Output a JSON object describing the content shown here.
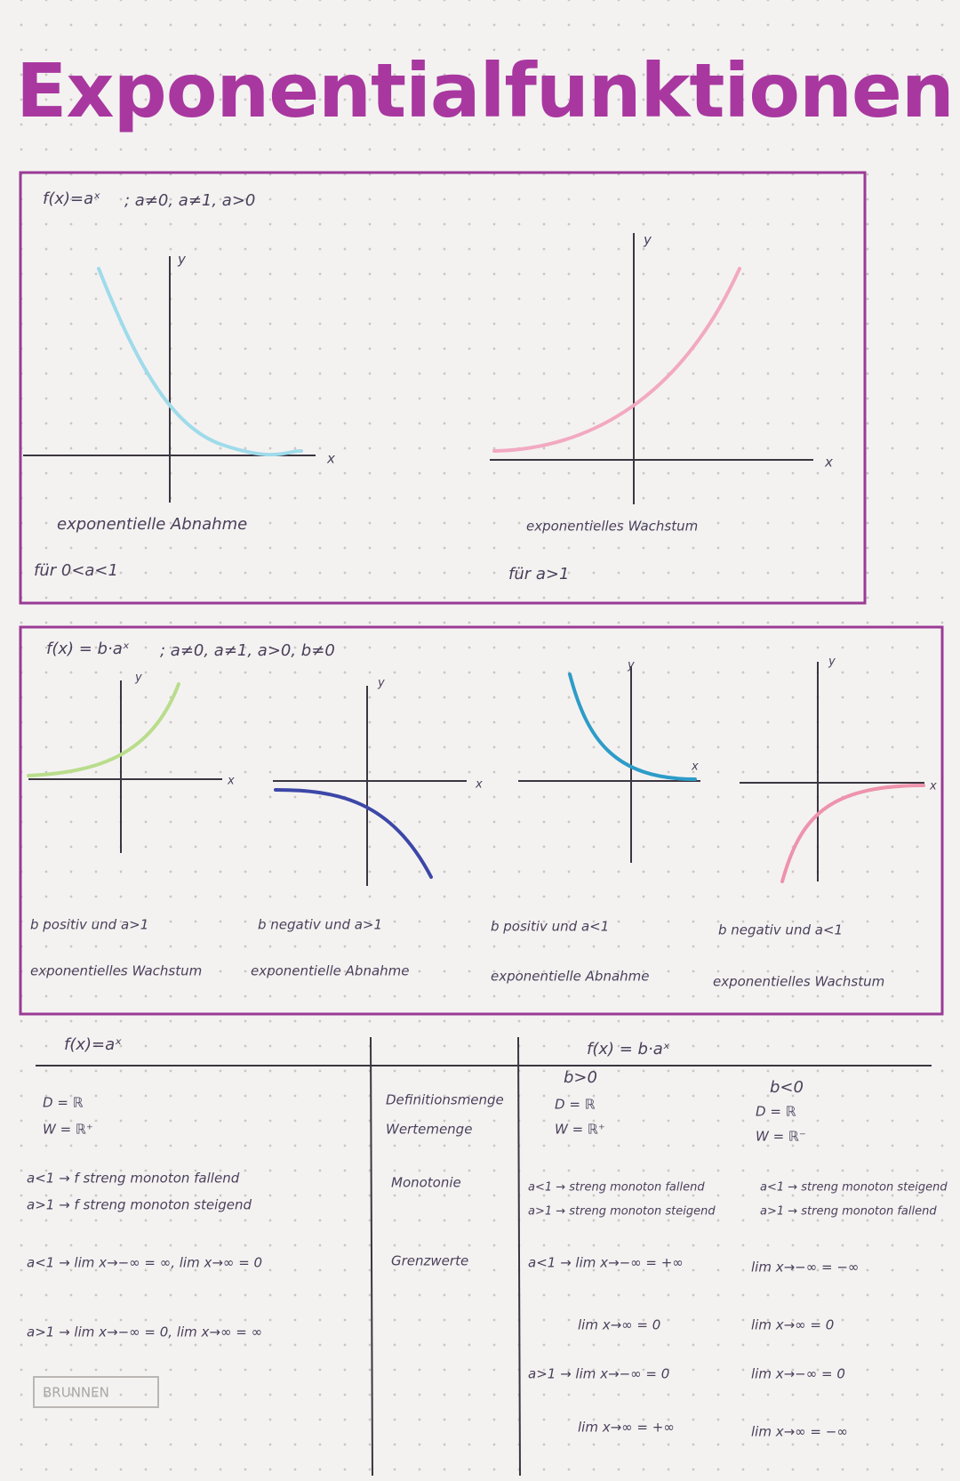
{
  "title": "Exponentialfunktionen",
  "axis_labels": {
    "x": "x",
    "y": "y"
  },
  "section_1": {
    "formula": "f(x)=aˣ",
    "conditions": "; a≠0, a≠1, a>0",
    "graphs": [
      {
        "caption": "exponentielle Abnahme",
        "condition": "für 0<a<1"
      },
      {
        "caption": "exponentielles Wachstum",
        "condition": "für a>1"
      }
    ]
  },
  "section_2": {
    "formula": "f(x) = b·aˣ",
    "conditions": "; a≠0, a≠1, a>0, b≠0",
    "graphs": [
      {
        "case": "b positiv und a>1",
        "behavior": "exponentielles Wachstum"
      },
      {
        "case": "b negativ und a>1",
        "behavior": "exponentielle Abnahme"
      },
      {
        "case": "b positiv und a<1",
        "behavior": "exponentielle Abnahme"
      },
      {
        "case": "b negativ und a<1",
        "behavior": "exponentielles Wachstum"
      }
    ]
  },
  "table": {
    "headers": {
      "left": "f(x)=aˣ",
      "right": "f(x) = b·aˣ",
      "b_positive": "b>0",
      "b_negative": "b<0"
    },
    "rows": [
      {
        "labels": [
          "Definitionsmenge",
          "Wertemenge"
        ],
        "left": [
          "D = ℝ",
          "W = ℝ⁺"
        ],
        "b_positive": [
          "D = ℝ",
          "W = ℝ⁺"
        ],
        "b_negative": [
          "D = ℝ",
          "W = ℝ⁻"
        ]
      },
      {
        "labels": [
          "Monotonie"
        ],
        "left": [
          "a<1 → f streng monoton fallend",
          "a>1 → f streng monoton steigend"
        ],
        "b_positive": [
          "a<1 → streng monoton fallend",
          "a>1 → streng monoton steigend"
        ],
        "b_negative": [
          "a<1 → streng monoton steigend",
          "a>1 → streng monoton fallend"
        ]
      },
      {
        "labels": [
          "Grenzwerte"
        ],
        "left": [
          "a<1 → lim x→−∞ = ∞, lim x→∞ = 0",
          "a>1 → lim x→−∞ = 0, lim x→∞ = ∞"
        ],
        "b_positive": [
          "a<1 → lim x→−∞ = +∞",
          "lim x→∞ = 0",
          "a>1 → lim x→−∞ = 0",
          "lim x→∞ = +∞"
        ],
        "b_negative": [
          "lim x→−∞ = −∞",
          "lim x→∞ = 0",
          "lim x→−∞ = 0",
          "lim x→∞ = −∞"
        ]
      }
    ]
  },
  "brand": "BRUNNEN"
}
